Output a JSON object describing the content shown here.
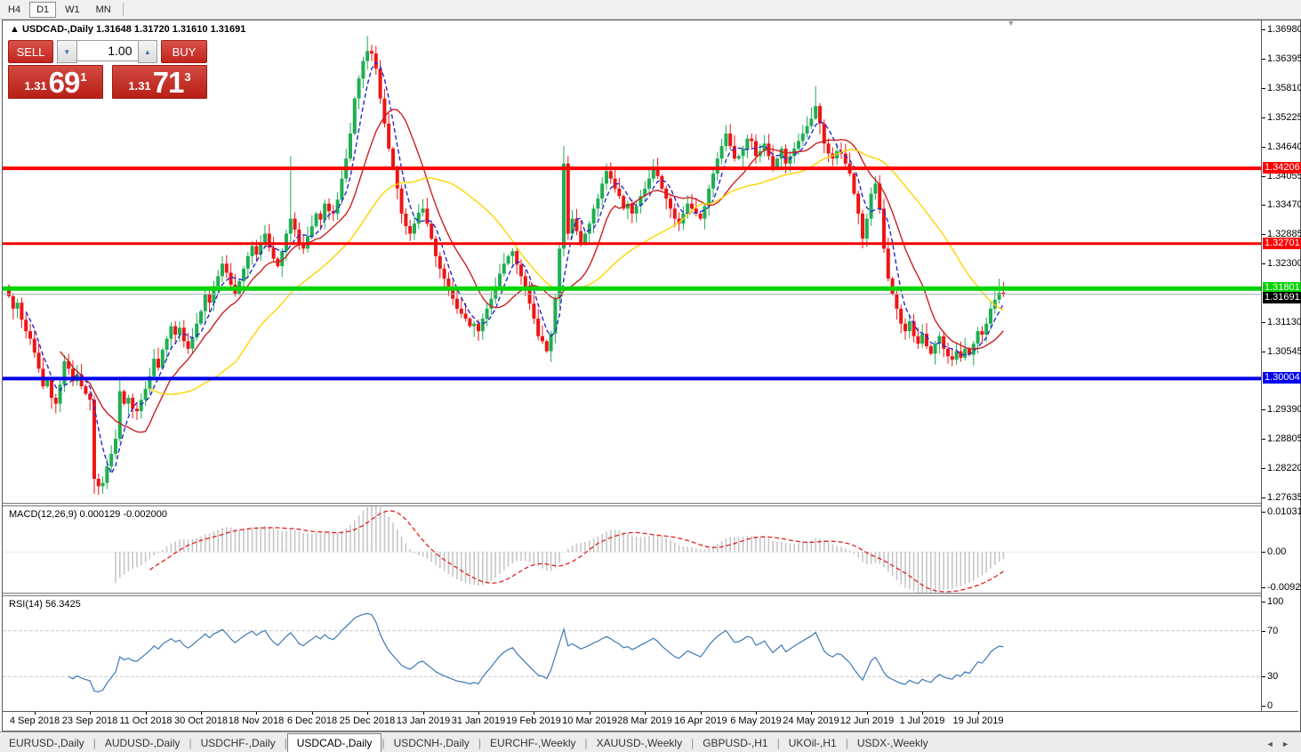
{
  "toolbar": {
    "timeframes": [
      {
        "label": "H4",
        "active": false
      },
      {
        "label": "D1",
        "active": true
      },
      {
        "label": "W1",
        "active": false
      },
      {
        "label": "MN",
        "active": false
      }
    ]
  },
  "chart_header": {
    "collapse_icon": "▲",
    "title": "USDCAD-,Daily",
    "open": "1.31648",
    "high": "1.31720",
    "low": "1.31610",
    "close": "1.31691"
  },
  "trade_panel": {
    "sell_label": "SELL",
    "buy_label": "BUY",
    "volume": "1.00",
    "spinner_down": "▼",
    "spinner_up": "▲",
    "sell_price": {
      "small": "1.31",
      "big": "69",
      "sup": "1"
    },
    "buy_price": {
      "small": "1.31",
      "big": "71",
      "sup": "3"
    }
  },
  "colors": {
    "bull": "#1fae53",
    "bear": "#ee1515",
    "line_red": "#fe0000",
    "line_green": "#00d400",
    "line_blue": "#0000ee",
    "ma_fast": "#2828cc",
    "ma_mid": "#cc2020",
    "ma_slow": "#ffd400",
    "macd_hist": "#c6c6c6",
    "macd_signal": "#e02020",
    "rsi": "#4079b5",
    "current_line": "#b2b2b2",
    "current_badge": "#000000"
  },
  "chart_data": {
    "type": "candlestick",
    "symbol": "USDCAD",
    "timeframe": "Daily",
    "ohlc_display": [
      1.31648,
      1.3172,
      1.3161,
      1.31691
    ],
    "y_axis": {
      "min": 1.2752,
      "max": 1.3716
    },
    "axis_ticks": [
      {
        "label": "1.36980",
        "value": 1.3698
      },
      {
        "label": "1.36395",
        "value": 1.36395
      },
      {
        "label": "1.35810",
        "value": 1.3581
      },
      {
        "label": "1.35225",
        "value": 1.35225
      },
      {
        "label": "1.34640",
        "value": 1.3464
      },
      {
        "label": "1.34055",
        "value": 1.34055
      },
      {
        "label": "1.33470",
        "value": 1.3347
      },
      {
        "label": "1.32885",
        "value": 1.32885
      },
      {
        "label": "1.32300",
        "value": 1.323
      },
      {
        "label": "1.31130",
        "value": 1.3113
      },
      {
        "label": "1.30545",
        "value": 1.30545
      },
      {
        "label": "1.29390",
        "value": 1.2939
      },
      {
        "label": "1.28805",
        "value": 1.28805
      },
      {
        "label": "1.28220",
        "value": 1.2822
      },
      {
        "label": "1.27635",
        "value": 1.27635
      }
    ],
    "hlines": [
      {
        "label": "1.34206",
        "price": 1.34206,
        "color": "#fe0000",
        "width": 4
      },
      {
        "label": "1.32701",
        "price": 1.32701,
        "color": "#fe0000",
        "width": 3
      },
      {
        "label": "1.31801",
        "price": 1.31801,
        "color": "#00d400",
        "width": 5
      },
      {
        "label": "1.30004",
        "price": 1.30004,
        "color": "#0000ee",
        "width": 4
      }
    ],
    "current_price": {
      "label": "1.31691",
      "value": 1.31691
    },
    "first_open": 1.3185,
    "wick_base": 0.0009,
    "wick_events": [
      {
        "i": 20,
        "low": 1.277
      },
      {
        "i": 84,
        "high": 1.3685
      },
      {
        "i": 66,
        "high": 1.3445
      },
      {
        "i": 130,
        "high": 1.3465
      },
      {
        "i": 189,
        "high": 1.3585
      },
      {
        "i": 232,
        "high": 1.32
      }
    ],
    "closes": [
      1.3165,
      1.314,
      1.3152,
      1.3118,
      1.3095,
      1.308,
      1.3052,
      1.302,
      1.2985,
      1.2998,
      1.2962,
      1.295,
      1.2988,
      1.3035,
      1.302,
      1.2995,
      1.3008,
      1.2985,
      1.297,
      1.2958,
      1.28,
      1.2785,
      1.2792,
      1.2825,
      1.285,
      1.288,
      1.2975,
      1.295,
      1.2962,
      1.294,
      1.2935,
      1.2958,
      1.298,
      1.3005,
      1.304,
      1.3022,
      1.3058,
      1.308,
      1.3105,
      1.3088,
      1.3102,
      1.3075,
      1.306,
      1.3082,
      1.311,
      1.3135,
      1.317,
      1.3152,
      1.3185,
      1.3205,
      1.323,
      1.3212,
      1.3188,
      1.317,
      1.3195,
      1.322,
      1.3245,
      1.3265,
      1.3248,
      1.3272,
      1.329,
      1.3262,
      1.324,
      1.3225,
      1.3255,
      1.329,
      1.332,
      1.3298,
      1.327,
      1.326,
      1.3285,
      1.3305,
      1.333,
      1.3318,
      1.335,
      1.3335,
      1.333,
      1.3358,
      1.34,
      1.344,
      1.349,
      1.356,
      1.36,
      1.3635,
      1.3655,
      1.365,
      1.362,
      1.356,
      1.351,
      1.346,
      1.342,
      1.338,
      1.333,
      1.3305,
      1.329,
      1.331,
      1.3332,
      1.334,
      1.331,
      1.328,
      1.3245,
      1.322,
      1.32,
      1.318,
      1.316,
      1.314,
      1.313,
      1.312,
      1.3105,
      1.311,
      1.3095,
      1.312,
      1.314,
      1.316,
      1.3185,
      1.321,
      1.323,
      1.3245,
      1.3255,
      1.3228,
      1.3205,
      1.318,
      1.315,
      1.312,
      1.3085,
      1.3075,
      1.3055,
      1.309,
      1.316,
      1.326,
      1.343,
      1.329,
      1.332,
      1.3295,
      1.327,
      1.329,
      1.331,
      1.334,
      1.336,
      1.339,
      1.3415,
      1.34,
      1.338,
      1.3365,
      1.334,
      1.335,
      1.333,
      1.3345,
      1.3365,
      1.338,
      1.34,
      1.342,
      1.3405,
      1.338,
      1.336,
      1.334,
      1.332,
      1.331,
      1.333,
      1.335,
      1.334,
      1.333,
      1.332,
      1.3345,
      1.338,
      1.341,
      1.344,
      1.3465,
      1.349,
      1.3465,
      1.344,
      1.3445,
      1.346,
      1.348,
      1.3475,
      1.3445,
      1.3455,
      1.347,
      1.3445,
      1.342,
      1.344,
      1.346,
      1.343,
      1.3445,
      1.346,
      1.3475,
      1.349,
      1.3505,
      1.352,
      1.3545,
      1.351,
      1.347,
      1.345,
      1.344,
      1.3455,
      1.345,
      1.343,
      1.341,
      1.337,
      1.333,
      1.328,
      1.332,
      1.337,
      1.339,
      1.334,
      1.326,
      1.32,
      1.317,
      1.314,
      1.311,
      1.3095,
      1.3115,
      1.3085,
      1.307,
      1.309,
      1.3065,
      1.305,
      1.307,
      1.3085,
      1.306,
      1.3045,
      1.3038,
      1.3055,
      1.3042,
      1.306,
      1.3048,
      1.307,
      1.3095,
      1.3088,
      1.311,
      1.314,
      1.3158,
      1.3172,
      1.31691
    ],
    "moving_averages": [
      {
        "period": 5,
        "color": "#2828cc",
        "dash": "5 3"
      },
      {
        "period": 13,
        "color": "#cc2020",
        "dash": ""
      },
      {
        "period": 34,
        "color": "#ffd400",
        "dash": ""
      }
    ],
    "date_ticks": {
      "first_index": 6,
      "step": 13,
      "labels": [
        "4 Sep 2018",
        "23 Sep 2018",
        "11 Oct 2018",
        "30 Oct 2018",
        "18 Nov 2018",
        "6 Dec 2018",
        "25 Dec 2018",
        "13 Jan 2019",
        "31 Jan 2019",
        "19 Feb 2019",
        "10 Mar 2019",
        "28 Mar 2019",
        "16 Apr 2019",
        "6 May 2019",
        "24 May 2019",
        "12 Jun 2019",
        "1 Jul 2019",
        "19 Jul 2019"
      ]
    },
    "macd": {
      "fast": 12,
      "slow": 26,
      "signal": 9,
      "range": [
        -0.009203,
        0.010311
      ],
      "axis_ticks": [
        {
          "label": "0.010311",
          "value": 0.010311
        },
        {
          "label": "0.00",
          "value": 0.0
        },
        {
          "label": "-0.009203",
          "value": -0.009203
        }
      ]
    },
    "rsi": {
      "period": 14,
      "value": 56.3425,
      "range": [
        0,
        100
      ],
      "levels": [
        70,
        30
      ],
      "axis_ticks": [
        {
          "label": "100",
          "value": 100
        },
        {
          "label": "70",
          "value": 70
        },
        {
          "label": "30",
          "value": 30
        },
        {
          "label": "0",
          "value": 0
        }
      ]
    }
  },
  "macd_pane": {
    "title": "MACD(12,26,9)",
    "value_main": "0.000129",
    "value_signal": "-0.002000"
  },
  "rsi_pane": {
    "title": "RSI(14)",
    "value": "56.3425"
  },
  "tabs": {
    "items": [
      "EURUSD-,Daily",
      "AUDUSD-,Daily",
      "USDCHF-,Daily",
      "USDCAD-,Daily",
      "USDCNH-,Daily",
      "EURCHF-,Weekly",
      "XAUUSD-,Weekly",
      "GBPUSD-,H1",
      "UKOil-,H1",
      "USDX-,Weekly"
    ],
    "active_index": 3,
    "left_arrow": "◄",
    "right_arrow": "►"
  }
}
